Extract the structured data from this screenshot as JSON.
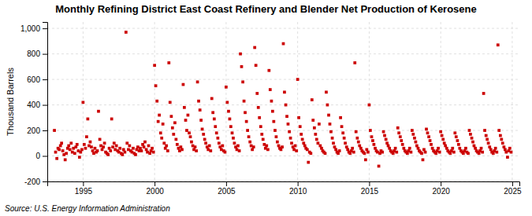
{
  "chart_data": {
    "type": "scatter",
    "title": "Monthly Refining District East Coast Refinery and Blender Net Production of Kerosene",
    "ylabel": "Thousand Barrels",
    "annotations": [
      "Source: U.S. Energy Information Administration"
    ],
    "color": "#CC0000",
    "marker": "square",
    "grid": true,
    "xlim": [
      1992.5,
      2025.5
    ],
    "ylim": [
      -200,
      1050
    ],
    "xticks": [
      1995,
      2000,
      2005,
      2010,
      2015,
      2020,
      2025
    ],
    "yticks": [
      -200,
      0,
      200,
      400,
      600,
      800,
      {
        "value": 1000,
        "label": "1,000"
      }
    ],
    "x": [
      1993.0,
      1993.08,
      1993.17,
      1993.25,
      1993.33,
      1993.42,
      1993.5,
      1993.58,
      1993.67,
      1993.75,
      1993.83,
      1993.92,
      1994.0,
      1994.08,
      1994.17,
      1994.25,
      1994.33,
      1994.42,
      1994.5,
      1994.58,
      1994.67,
      1994.75,
      1994.83,
      1994.92,
      1995.0,
      1995.08,
      1995.17,
      1995.25,
      1995.33,
      1995.42,
      1995.5,
      1995.58,
      1995.67,
      1995.75,
      1995.83,
      1995.92,
      1996.0,
      1996.08,
      1996.17,
      1996.25,
      1996.33,
      1996.42,
      1996.5,
      1996.58,
      1996.67,
      1996.75,
      1996.83,
      1996.92,
      1997.0,
      1997.08,
      1997.17,
      1997.25,
      1997.33,
      1997.42,
      1997.5,
      1997.58,
      1997.67,
      1997.75,
      1997.83,
      1997.92,
      1998.0,
      1998.08,
      1998.17,
      1998.25,
      1998.33,
      1998.42,
      1998.5,
      1998.58,
      1998.67,
      1998.75,
      1998.83,
      1998.92,
      1999.0,
      1999.08,
      1999.17,
      1999.25,
      1999.33,
      1999.42,
      1999.5,
      1999.58,
      1999.67,
      1999.75,
      1999.83,
      1999.92,
      2000.0,
      2000.08,
      2000.17,
      2000.25,
      2000.33,
      2000.42,
      2000.5,
      2000.58,
      2000.67,
      2000.75,
      2000.83,
      2000.92,
      2001.0,
      2001.08,
      2001.17,
      2001.25,
      2001.33,
      2001.42,
      2001.5,
      2001.58,
      2001.67,
      2001.75,
      2001.83,
      2001.92,
      2002.0,
      2002.08,
      2002.17,
      2002.25,
      2002.33,
      2002.42,
      2002.5,
      2002.58,
      2002.67,
      2002.75,
      2002.83,
      2002.92,
      2003.0,
      2003.08,
      2003.17,
      2003.25,
      2003.33,
      2003.42,
      2003.5,
      2003.58,
      2003.67,
      2003.75,
      2003.83,
      2003.92,
      2004.0,
      2004.08,
      2004.17,
      2004.25,
      2004.33,
      2004.42,
      2004.5,
      2004.58,
      2004.67,
      2004.75,
      2004.83,
      2004.92,
      2005.0,
      2005.08,
      2005.17,
      2005.25,
      2005.33,
      2005.42,
      2005.5,
      2005.58,
      2005.67,
      2005.75,
      2005.83,
      2005.92,
      2006.0,
      2006.08,
      2006.17,
      2006.25,
      2006.33,
      2006.42,
      2006.5,
      2006.58,
      2006.67,
      2006.75,
      2006.83,
      2006.92,
      2007.0,
      2007.08,
      2007.17,
      2007.25,
      2007.33,
      2007.42,
      2007.5,
      2007.58,
      2007.67,
      2007.75,
      2007.83,
      2007.92,
      2008.0,
      2008.08,
      2008.17,
      2008.25,
      2008.33,
      2008.42,
      2008.5,
      2008.58,
      2008.67,
      2008.75,
      2008.83,
      2008.92,
      2009.0,
      2009.08,
      2009.17,
      2009.25,
      2009.33,
      2009.42,
      2009.5,
      2009.58,
      2009.67,
      2009.75,
      2009.83,
      2009.92,
      2010.0,
      2010.08,
      2010.17,
      2010.25,
      2010.33,
      2010.42,
      2010.5,
      2010.58,
      2010.67,
      2010.75,
      2010.83,
      2010.92,
      2011.0,
      2011.08,
      2011.17,
      2011.25,
      2011.33,
      2011.42,
      2011.5,
      2011.58,
      2011.67,
      2011.75,
      2011.83,
      2011.92,
      2012.0,
      2012.08,
      2012.17,
      2012.25,
      2012.33,
      2012.42,
      2012.5,
      2012.58,
      2012.67,
      2012.75,
      2012.83,
      2012.92,
      2013.0,
      2013.08,
      2013.17,
      2013.25,
      2013.33,
      2013.42,
      2013.5,
      2013.58,
      2013.67,
      2013.75,
      2013.83,
      2013.92,
      2014.0,
      2014.08,
      2014.17,
      2014.25,
      2014.33,
      2014.42,
      2014.5,
      2014.58,
      2014.67,
      2014.75,
      2014.83,
      2014.92,
      2015.0,
      2015.08,
      2015.17,
      2015.25,
      2015.33,
      2015.42,
      2015.5,
      2015.58,
      2015.67,
      2015.75,
      2015.83,
      2015.92,
      2016.0,
      2016.08,
      2016.17,
      2016.25,
      2016.33,
      2016.42,
      2016.5,
      2016.58,
      2016.67,
      2016.75,
      2016.83,
      2016.92,
      2017.0,
      2017.08,
      2017.17,
      2017.25,
      2017.33,
      2017.42,
      2017.5,
      2017.58,
      2017.67,
      2017.75,
      2017.83,
      2017.92,
      2018.0,
      2018.08,
      2018.17,
      2018.25,
      2018.33,
      2018.42,
      2018.5,
      2018.58,
      2018.67,
      2018.75,
      2018.83,
      2018.92,
      2019.0,
      2019.08,
      2019.17,
      2019.25,
      2019.33,
      2019.42,
      2019.5,
      2019.58,
      2019.67,
      2019.75,
      2019.83,
      2019.92,
      2020.0,
      2020.08,
      2020.17,
      2020.25,
      2020.33,
      2020.42,
      2020.5,
      2020.58,
      2020.67,
      2020.75,
      2020.83,
      2020.92,
      2021.0,
      2021.08,
      2021.17,
      2021.25,
      2021.33,
      2021.42,
      2021.5,
      2021.58,
      2021.67,
      2021.75,
      2021.83,
      2021.92,
      2022.0,
      2022.08,
      2022.17,
      2022.25,
      2022.33,
      2022.42,
      2022.5,
      2022.58,
      2022.67,
      2022.75,
      2022.83,
      2022.92,
      2023.0,
      2023.08,
      2023.17,
      2023.25,
      2023.33,
      2023.42,
      2023.5,
      2023.58,
      2023.67,
      2023.75,
      2023.83,
      2023.92,
      2024.0,
      2024.08,
      2024.17,
      2024.25,
      2024.33,
      2024.42,
      2024.5,
      2024.58,
      2024.67,
      2024.75,
      2024.83,
      2024.92
    ],
    "values": [
      200,
      30,
      -20,
      60,
      50,
      80,
      100,
      40,
      10,
      -30,
      20,
      60,
      80,
      50,
      100,
      30,
      60,
      20,
      70,
      90,
      40,
      -10,
      30,
      50,
      420,
      90,
      60,
      150,
      290,
      80,
      110,
      70,
      40,
      20,
      60,
      30,
      40,
      350,
      130,
      80,
      50,
      70,
      100,
      30,
      20,
      10,
      60,
      40,
      290,
      70,
      100,
      50,
      80,
      40,
      30,
      60,
      20,
      10,
      50,
      30,
      970,
      100,
      50,
      80,
      40,
      30,
      60,
      20,
      10,
      50,
      70,
      40,
      60,
      40,
      90,
      70,
      110,
      50,
      30,
      80,
      20,
      40,
      60,
      30,
      710,
      550,
      430,
      270,
      320,
      180,
      140,
      250,
      100,
      60,
      80,
      40,
      730,
      420,
      310,
      220,
      170,
      260,
      130,
      90,
      60,
      40,
      70,
      50,
      560,
      380,
      280,
      200,
      320,
      180,
      150,
      110,
      80,
      50,
      70,
      40,
      580,
      430,
      360,
      280,
      210,
      170,
      130,
      100,
      70,
      50,
      80,
      40,
      450,
      340,
      290,
      230,
      180,
      140,
      100,
      70,
      50,
      80,
      40,
      30,
      540,
      420,
      350,
      290,
      230,
      180,
      140,
      100,
      70,
      50,
      80,
      40,
      800,
      700,
      580,
      430,
      340,
      270,
      200,
      150,
      110,
      80,
      50,
      70,
      850,
      710,
      490,
      380,
      300,
      230,
      170,
      130,
      90,
      60,
      80,
      50,
      670,
      520,
      430,
      350,
      270,
      200,
      150,
      110,
      80,
      60,
      50,
      70,
      880,
      500,
      400,
      310,
      250,
      190,
      140,
      100,
      70,
      50,
      80,
      40,
      600,
      300,
      230,
      170,
      130,
      100,
      80,
      60,
      50,
      -50,
      30,
      20,
      440,
      280,
      220,
      170,
      130,
      100,
      250,
      80,
      60,
      40,
      30,
      20,
      500,
      400,
      320,
      250,
      190,
      140,
      100,
      70,
      50,
      30,
      20,
      40,
      300,
      230,
      180,
      140,
      100,
      70,
      50,
      30,
      20,
      40,
      60,
      30,
      730,
      190,
      140,
      110,
      80,
      60,
      40,
      30,
      20,
      -30,
      50,
      30,
      400,
      200,
      150,
      120,
      90,
      60,
      40,
      30,
      -80,
      20,
      40,
      30,
      190,
      160,
      130,
      100,
      80,
      60,
      40,
      30,
      20,
      40,
      60,
      30,
      220,
      180,
      150,
      120,
      90,
      60,
      40,
      30,
      20,
      40,
      60,
      30,
      200,
      170,
      140,
      110,
      80,
      60,
      40,
      30,
      20,
      -30,
      50,
      30,
      210,
      180,
      150,
      120,
      90,
      60,
      40,
      30,
      20,
      40,
      60,
      30,
      190,
      160,
      130,
      100,
      80,
      60,
      40,
      30,
      20,
      40,
      60,
      30,
      180,
      150,
      120,
      90,
      60,
      40,
      30,
      20,
      40,
      60,
      30,
      20,
      200,
      170,
      140,
      110,
      80,
      60,
      40,
      30,
      20,
      40,
      60,
      30,
      490,
      200,
      160,
      130,
      100,
      70,
      50,
      30,
      20,
      40,
      60,
      30,
      870,
      200,
      160,
      130,
      100,
      70,
      50,
      30,
      -10,
      40,
      60,
      30
    ]
  }
}
